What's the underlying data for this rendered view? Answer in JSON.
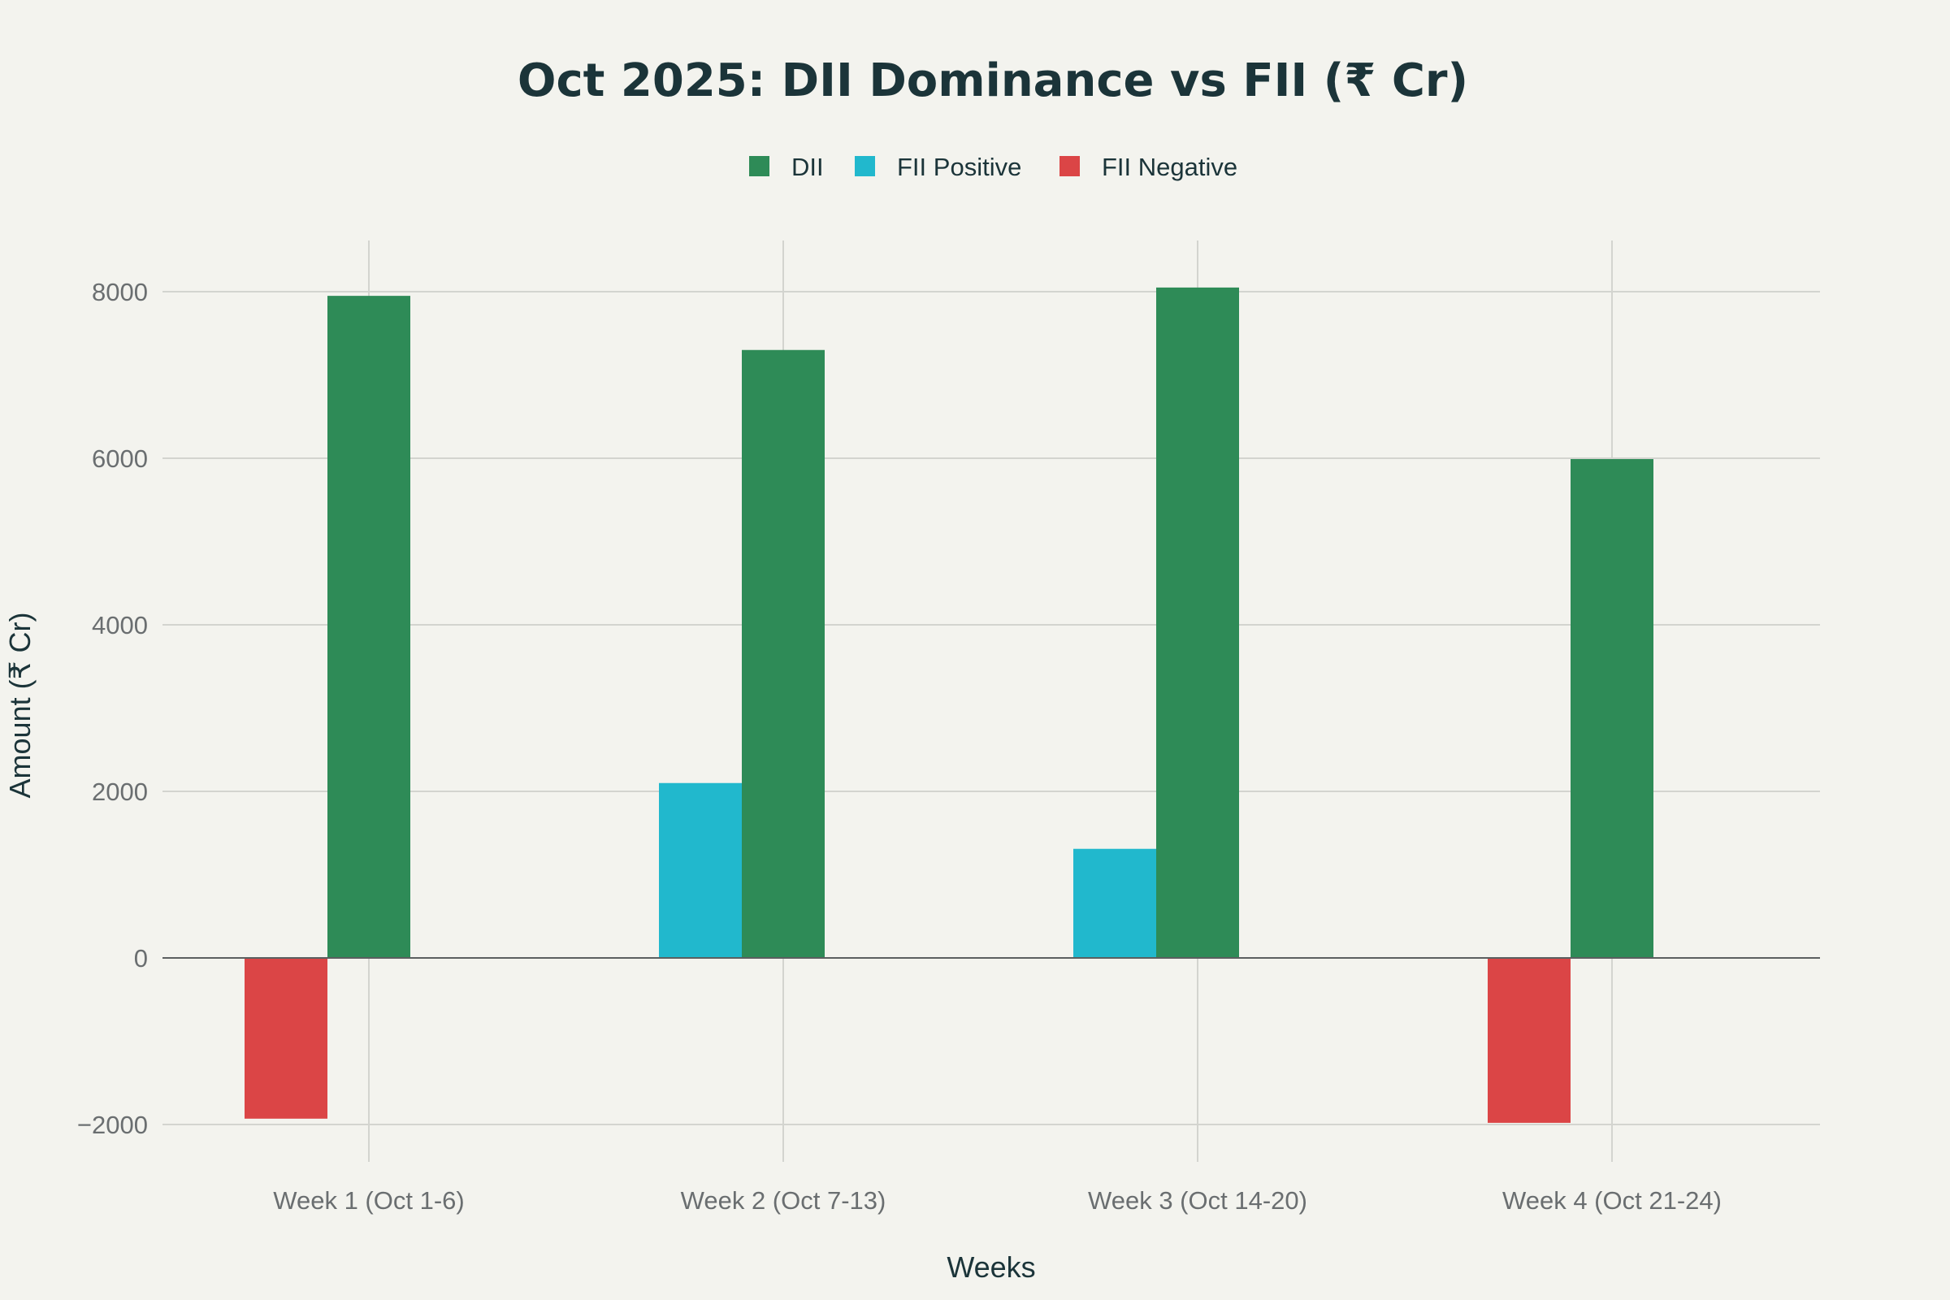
{
  "chart_data": {
    "type": "bar",
    "title": "Oct 2025: DII Dominance vs FII (₹ Cr)",
    "xlabel": "Weeks",
    "ylabel": "Amount (₹ Cr)",
    "ylim": [
      -2500,
      8600
    ],
    "yticks": [
      -2000,
      0,
      2000,
      4000,
      6000,
      8000
    ],
    "ytick_labels": [
      "−2000",
      "0",
      "2000",
      "4000",
      "6000",
      "8000"
    ],
    "categories": [
      "Week 1 (Oct 1-6)",
      "Week 2 (Oct 7-13)",
      "Week 3 (Oct 14-20)",
      "Week 4 (Oct 21-24)"
    ],
    "legend_position": "top-center",
    "grid": true,
    "series": [
      {
        "name": "DII",
        "color": "#2e8b57",
        "values": [
          7950,
          7300,
          8050,
          5990
        ]
      },
      {
        "name": "FII Positive",
        "color": "#21b8cd",
        "values": [
          null,
          2100,
          1310,
          null
        ]
      },
      {
        "name": "FII Negative",
        "color": "#db4546",
        "values": [
          -1930,
          null,
          null,
          -1980
        ]
      }
    ]
  }
}
